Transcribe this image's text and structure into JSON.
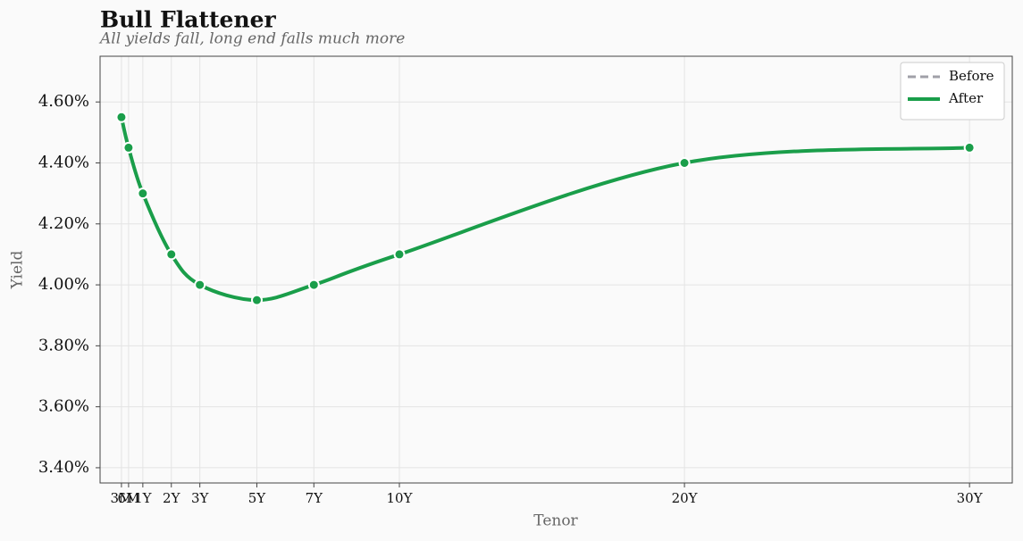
{
  "chart_data": {
    "type": "line",
    "title": "Bull Flattener",
    "subtitle": "All yields fall, long end falls much more",
    "x_label": "Tenor",
    "y_label": "Yield",
    "x": [
      0.25,
      0.5,
      1,
      2,
      3,
      5,
      7,
      10,
      20,
      30
    ],
    "series": [
      {
        "name": "Before",
        "color": "#a0a0a8",
        "dash": true,
        "values": [
          null,
          null,
          null,
          null,
          null,
          null,
          null,
          null,
          null,
          null
        ]
      },
      {
        "name": "After",
        "color": "#1a9e4a",
        "dash": false,
        "values": [
          4.55,
          4.45,
          4.3,
          4.1,
          4.0,
          3.95,
          4.0,
          4.1,
          4.4,
          4.45
        ]
      }
    ],
    "xlim": [
      -0.5,
      31.5
    ],
    "ylim": [
      3.35,
      4.75
    ],
    "xticks": [
      {
        "value": 0.25,
        "label": "3M"
      },
      {
        "value": 0.5,
        "label": "6M"
      },
      {
        "value": 1,
        "label": "1Y"
      },
      {
        "value": 2,
        "label": "2Y"
      },
      {
        "value": 3,
        "label": "3Y"
      },
      {
        "value": 5,
        "label": "5Y"
      },
      {
        "value": 7,
        "label": "7Y"
      },
      {
        "value": 10,
        "label": "10Y"
      },
      {
        "value": 20,
        "label": "20Y"
      },
      {
        "value": 30,
        "label": "30Y"
      }
    ],
    "yticks": [
      {
        "value": 3.4,
        "label": "3.40%"
      },
      {
        "value": 3.6,
        "label": "3.60%"
      },
      {
        "value": 3.8,
        "label": "3.80%"
      },
      {
        "value": 4.0,
        "label": "4.00%"
      },
      {
        "value": 4.2,
        "label": "4.20%"
      },
      {
        "value": 4.4,
        "label": "4.40%"
      },
      {
        "value": 4.6,
        "label": "4.60%"
      }
    ],
    "grid": true,
    "legend": "upper right"
  }
}
